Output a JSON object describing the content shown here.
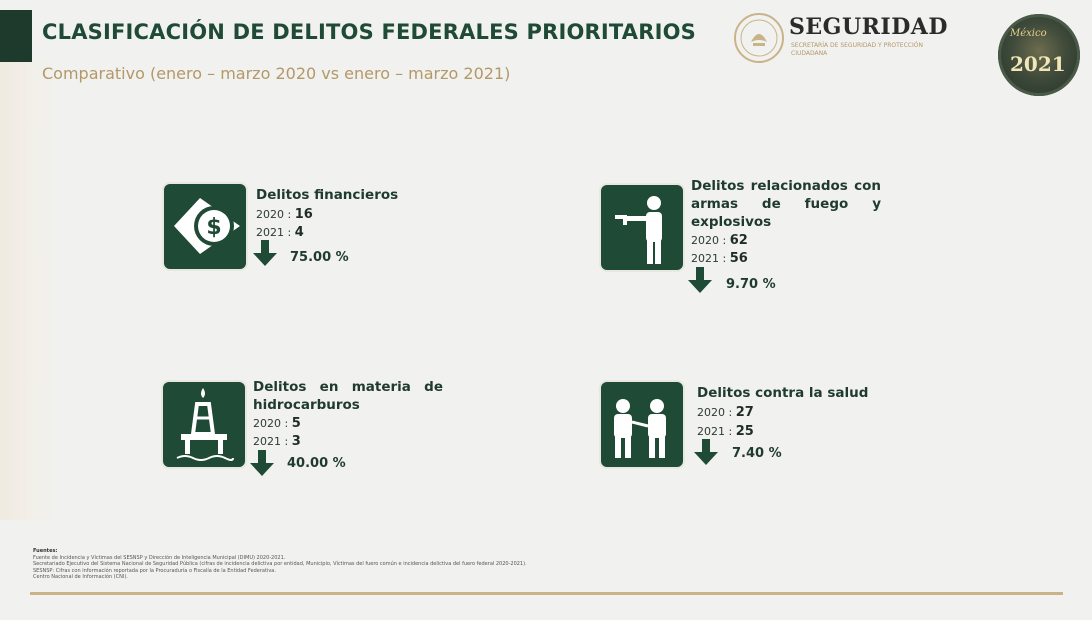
{
  "header": {
    "title": "CLASIFICACIÓN DE DELITOS FEDERALES PRIORITARIOS",
    "subtitle": "Comparativo (enero – marzo 2020 vs enero – marzo 2021)"
  },
  "logo": {
    "text": "SEGURIDAD",
    "subtext": "SECRETARÍA DE SEGURIDAD Y PROTECCIÓN CIUDADANA",
    "badge_brand": "México",
    "badge_year": "2021"
  },
  "cards": [
    {
      "heading": "Delitos financieros",
      "y2020_label": "2020 :",
      "y2020_value": "16",
      "y2021_label": "2021 :",
      "y2021_value": "4",
      "change": "75.00 %",
      "icon": "money-icon"
    },
    {
      "heading": "Delitos relacionados con armas de fuego y explosivos",
      "y2020_label": "2020 :",
      "y2020_value": "62",
      "y2021_label": "2021 :",
      "y2021_value": "56",
      "change": "9.70 %",
      "icon": "gunman-icon"
    },
    {
      "heading": "Delitos en materia de hidrocarburos",
      "y2020_label": "2020 :",
      "y2020_value": "5",
      "y2021_label": "2021 :",
      "y2021_value": "3",
      "change": "40.00 %",
      "icon": "oil-platform-icon"
    },
    {
      "heading": "Delitos contra la salud",
      "y2020_label": "2020 :",
      "y2020_value": "27",
      "y2021_label": "2021 :",
      "y2021_value": "25",
      "change": "7.40 %",
      "icon": "health-people-icon"
    }
  ],
  "sources": {
    "label": "Fuentes:",
    "lines": [
      "Fuente de Incidencia y Víctimas del SESNSP y Dirección de Inteligencia Municipal (DIMU) 2020-2021.",
      "Secretariado Ejecutivo del Sistema Nacional de Seguridad Pública (cifras de incidencia delictiva por entidad, Municipio, Víctimas del fuero común e incidencia delictiva del fuero federal 2020-2021).",
      "SESNSP: Cifras con información reportada por la Procuraduría o Fiscalía de la Entidad Federativa.",
      "Centro Nacional de Información (CNI)."
    ]
  },
  "colors": {
    "accent_green": "#1f4a35",
    "gold": "#b39868",
    "background": "#f1f1ef"
  }
}
